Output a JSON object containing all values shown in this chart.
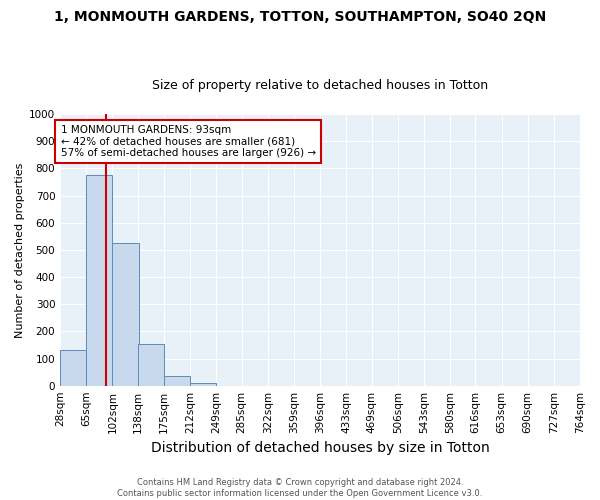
{
  "title1": "1, MONMOUTH GARDENS, TOTTON, SOUTHAMPTON, SO40 2QN",
  "title2": "Size of property relative to detached houses in Totton",
  "xlabel": "Distribution of detached houses by size in Totton",
  "ylabel": "Number of detached properties",
  "bin_edges": [
    28,
    65,
    102,
    138,
    175,
    212,
    249,
    285,
    322,
    359,
    396,
    433,
    469,
    506,
    543,
    580,
    616,
    653,
    690,
    727,
    764
  ],
  "bin_counts": [
    130,
    775,
    525,
    155,
    35,
    10,
    0,
    0,
    0,
    0,
    0,
    0,
    0,
    0,
    0,
    0,
    0,
    0,
    0,
    0
  ],
  "bar_color": "#c9d9ed",
  "bar_edge_color": "#5b8db8",
  "vline_x": 93,
  "vline_color": "#cc0000",
  "annotation_text": "1 MONMOUTH GARDENS: 93sqm\n← 42% of detached houses are smaller (681)\n57% of semi-detached houses are larger (926) →",
  "annotation_box_color": "#ffffff",
  "annotation_box_edge": "#cc0000",
  "ylim": [
    0,
    1000
  ],
  "yticks": [
    0,
    100,
    200,
    300,
    400,
    500,
    600,
    700,
    800,
    900,
    1000
  ],
  "background_color": "#e8f0f8",
  "grid_color": "#ffffff",
  "footnote": "Contains HM Land Registry data © Crown copyright and database right 2024.\nContains public sector information licensed under the Open Government Licence v3.0.",
  "title1_fontsize": 10,
  "title2_fontsize": 9,
  "xlabel_fontsize": 10,
  "ylabel_fontsize": 8,
  "tick_fontsize": 7.5
}
